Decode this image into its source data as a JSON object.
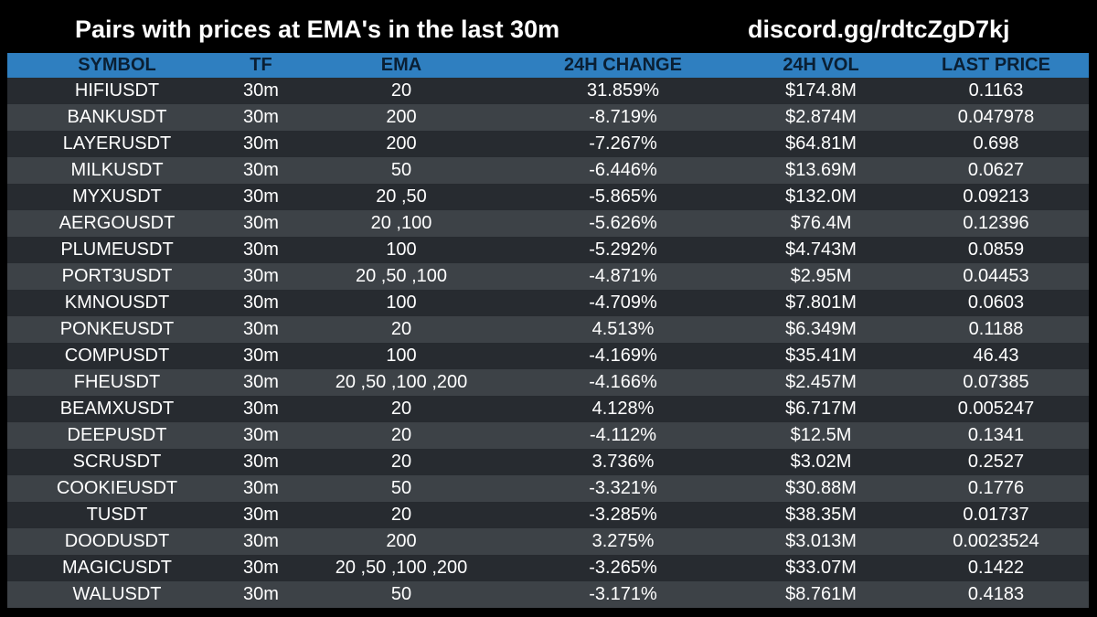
{
  "header": {
    "title": "Pairs with prices at EMA's in the last 30m",
    "discord": "discord.gg/rdtcZgD7kj"
  },
  "table": {
    "columns": [
      "SYMBOL",
      "TF",
      "EMA",
      "24H CHANGE",
      "24H VOL",
      "LAST PRICE"
    ],
    "rows": [
      [
        "HIFIUSDT",
        "30m",
        "20",
        "31.859%",
        "$174.8M",
        "0.1163"
      ],
      [
        "BANKUSDT",
        "30m",
        "200",
        "-8.719%",
        "$2.874M",
        "0.047978"
      ],
      [
        "LAYERUSDT",
        "30m",
        "200",
        "-7.267%",
        "$64.81M",
        "0.698"
      ],
      [
        "MILKUSDT",
        "30m",
        "50",
        "-6.446%",
        "$13.69M",
        "0.0627"
      ],
      [
        "MYXUSDT",
        "30m",
        "20 ,50",
        "-5.865%",
        "$132.0M",
        "0.09213"
      ],
      [
        "AERGOUSDT",
        "30m",
        "20 ,100",
        "-5.626%",
        "$76.4M",
        "0.12396"
      ],
      [
        "PLUMEUSDT",
        "30m",
        "100",
        "-5.292%",
        "$4.743M",
        "0.0859"
      ],
      [
        "PORT3USDT",
        "30m",
        "20 ,50 ,100",
        "-4.871%",
        "$2.95M",
        "0.04453"
      ],
      [
        "KMNOUSDT",
        "30m",
        "100",
        "-4.709%",
        "$7.801M",
        "0.0603"
      ],
      [
        "PONKEUSDT",
        "30m",
        "20",
        "4.513%",
        "$6.349M",
        "0.1188"
      ],
      [
        "COMPUSDT",
        "30m",
        "100",
        "-4.169%",
        "$35.41M",
        "46.43"
      ],
      [
        "FHEUSDT",
        "30m",
        "20 ,50 ,100 ,200",
        "-4.166%",
        "$2.457M",
        "0.07385"
      ],
      [
        "BEAMXUSDT",
        "30m",
        "20",
        "4.128%",
        "$6.717M",
        "0.005247"
      ],
      [
        "DEEPUSDT",
        "30m",
        "20",
        "-4.112%",
        "$12.5M",
        "0.1341"
      ],
      [
        "SCRUSDT",
        "30m",
        "20",
        "3.736%",
        "$3.02M",
        "0.2527"
      ],
      [
        "COOKIEUSDT",
        "30m",
        "50",
        "-3.321%",
        "$30.88M",
        "0.1776"
      ],
      [
        "TUSDT",
        "30m",
        "20",
        "-3.285%",
        "$38.35M",
        "0.01737"
      ],
      [
        "DOODUSDT",
        "30m",
        "200",
        "3.275%",
        "$3.013M",
        "0.0023524"
      ],
      [
        "MAGICUSDT",
        "30m",
        "20 ,50 ,100 ,200",
        "-3.265%",
        "$33.07M",
        "0.1422"
      ],
      [
        "WALUSDT",
        "30m",
        "50",
        "-3.171%",
        "$8.761M",
        "0.4183"
      ]
    ]
  },
  "colors": {
    "background": "#000000",
    "header_bg": "#2f7fc0",
    "header_text": "#0a1f33",
    "row_dark": "#272b30",
    "row_light": "#3d4247",
    "text": "#ffffff"
  }
}
